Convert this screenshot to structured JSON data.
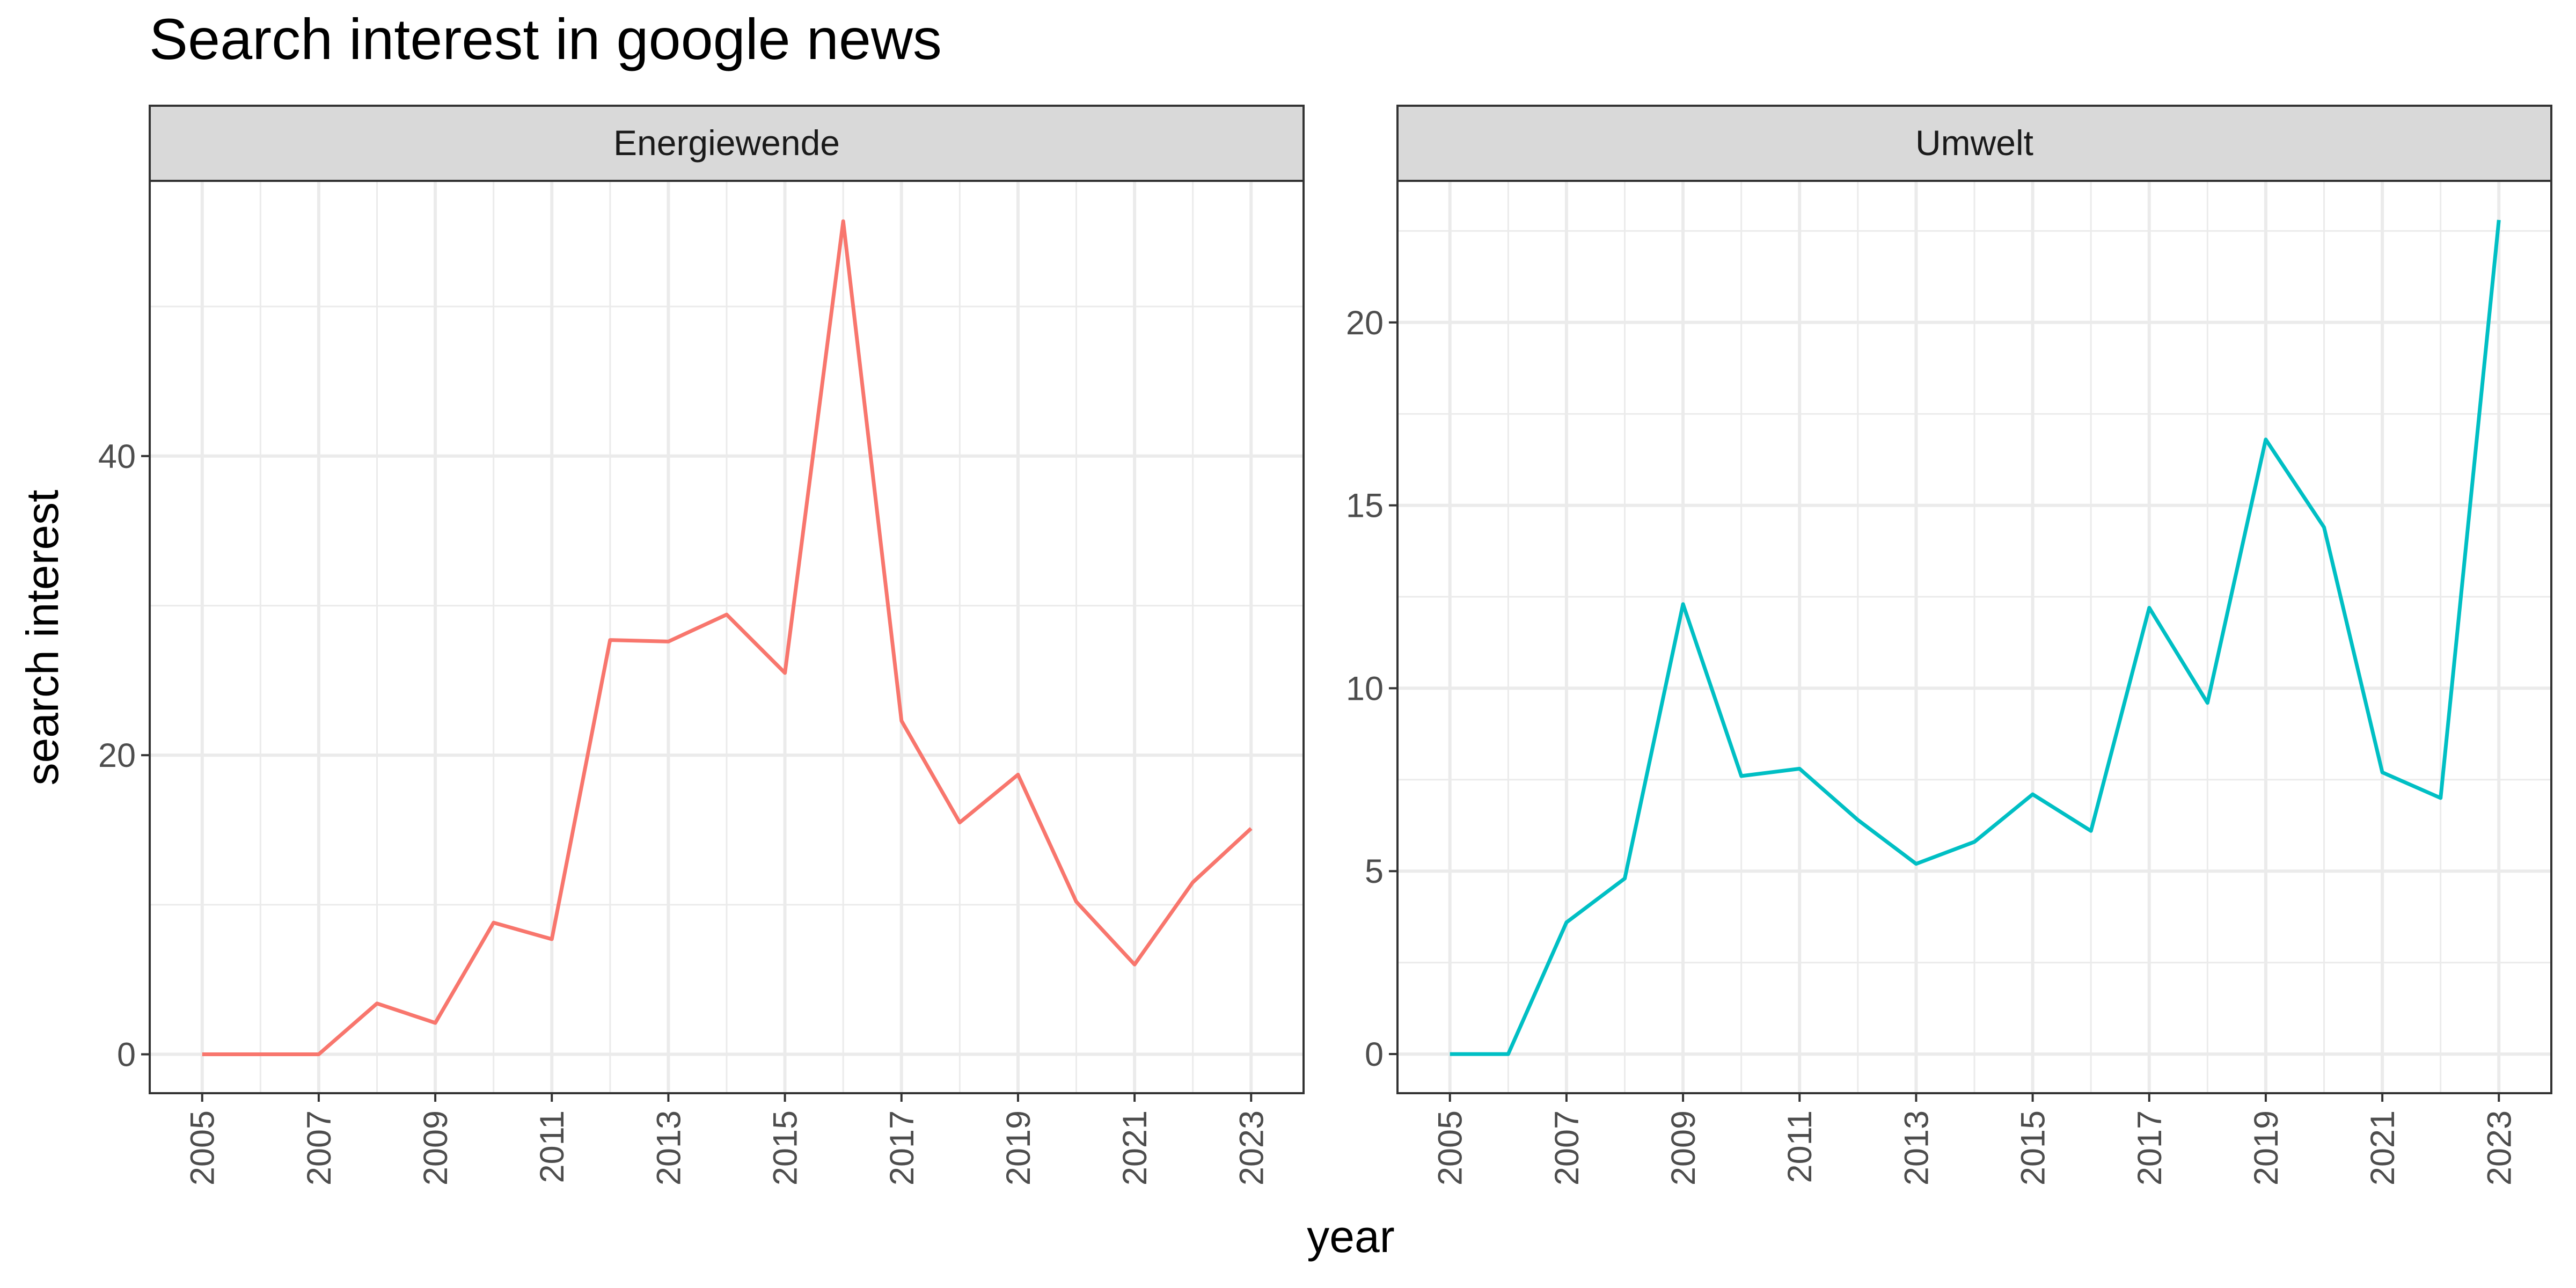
{
  "chart_data": {
    "type": "line",
    "title": "Search interest in google news",
    "xlabel": "year",
    "ylabel": "search interest",
    "grid": true,
    "legend": "none",
    "facets": [
      {
        "name": "Energiewende",
        "color": "#F8766D",
        "x": [
          2005,
          2006,
          2007,
          2008,
          2009,
          2010,
          2011,
          2012,
          2013,
          2014,
          2015,
          2016,
          2017,
          2018,
          2019,
          2020,
          2021,
          2022,
          2023
        ],
        "y": [
          0,
          0,
          0,
          3.4,
          2.1,
          8.8,
          7.7,
          27.7,
          27.6,
          29.4,
          25.5,
          55.7,
          22.3,
          15.5,
          18.7,
          10.2,
          6.0,
          11.5,
          15.1
        ],
        "xlim": [
          2004.1,
          2023.9
        ],
        "ylim": [
          -2.6,
          58.4
        ],
        "x_ticks": [
          2005,
          2007,
          2009,
          2011,
          2013,
          2015,
          2017,
          2019,
          2021,
          2023
        ],
        "y_ticks": [
          0,
          20,
          40
        ],
        "y_tick_labels": [
          "0",
          "20",
          "40"
        ]
      },
      {
        "name": "Umwelt",
        "color": "#00BFC4",
        "x": [
          2005,
          2006,
          2007,
          2008,
          2009,
          2010,
          2011,
          2012,
          2013,
          2014,
          2015,
          2016,
          2017,
          2018,
          2019,
          2020,
          2021,
          2022,
          2023
        ],
        "y": [
          0,
          0,
          3.6,
          4.8,
          12.3,
          7.6,
          7.8,
          6.4,
          5.2,
          5.8,
          7.1,
          6.1,
          12.2,
          9.6,
          16.8,
          14.4,
          7.7,
          7.0,
          22.8
        ],
        "xlim": [
          2004.1,
          2023.9
        ],
        "ylim": [
          -1.07,
          23.87
        ],
        "x_ticks": [
          2005,
          2007,
          2009,
          2011,
          2013,
          2015,
          2017,
          2019,
          2021,
          2023
        ],
        "y_ticks": [
          0,
          5,
          10,
          15,
          20
        ],
        "y_tick_labels": [
          "0",
          "5",
          "10",
          "15",
          "20"
        ]
      }
    ]
  }
}
